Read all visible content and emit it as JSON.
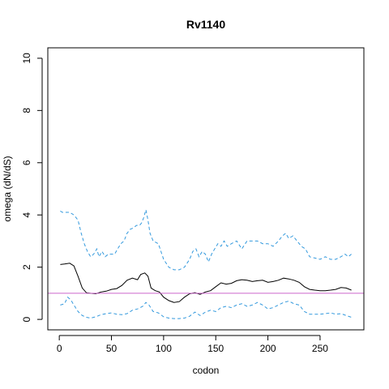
{
  "chart_data": {
    "type": "line",
    "title": "Rv1140",
    "xlabel": "codon",
    "ylabel": "omega (dN/dS)",
    "xlim": [
      -11,
      292
    ],
    "ylim": [
      -0.4,
      10.4
    ],
    "x_ticks": [
      0,
      50,
      100,
      150,
      200,
      250
    ],
    "y_ticks": [
      0,
      2,
      4,
      6,
      8,
      10
    ],
    "grid": false,
    "legend": "none",
    "reference_line": {
      "y": 1,
      "color": "#cc66cc"
    },
    "series": [
      {
        "style": "solid",
        "color": "#000000",
        "x": [
          1,
          5,
          10,
          14,
          18,
          22,
          26,
          30,
          35,
          40,
          45,
          50,
          55,
          60,
          65,
          70,
          75,
          78,
          82,
          85,
          88,
          92,
          96,
          100,
          105,
          110,
          115,
          120,
          125,
          130,
          135,
          140,
          145,
          150,
          155,
          160,
          165,
          170,
          175,
          180,
          185,
          190,
          195,
          200,
          205,
          210,
          215,
          220,
          225,
          230,
          235,
          240,
          245,
          250,
          255,
          260,
          265,
          270,
          275,
          280
        ],
        "y": [
          2.1,
          2.12,
          2.15,
          2.05,
          1.65,
          1.2,
          1.02,
          1.0,
          0.98,
          1.05,
          1.08,
          1.15,
          1.18,
          1.3,
          1.5,
          1.58,
          1.52,
          1.72,
          1.78,
          1.65,
          1.2,
          1.1,
          1.05,
          0.85,
          0.72,
          0.65,
          0.68,
          0.85,
          0.98,
          1.02,
          0.96,
          1.05,
          1.1,
          1.25,
          1.4,
          1.35,
          1.38,
          1.48,
          1.52,
          1.5,
          1.45,
          1.48,
          1.5,
          1.42,
          1.45,
          1.5,
          1.58,
          1.55,
          1.5,
          1.42,
          1.25,
          1.15,
          1.12,
          1.1,
          1.1,
          1.12,
          1.15,
          1.22,
          1.2,
          1.12
        ]
      },
      {
        "style": "dashed",
        "color": "#3399dd",
        "x": [
          1,
          3,
          6,
          10,
          14,
          18,
          21,
          24,
          27,
          30,
          33,
          36,
          38,
          41,
          44,
          47,
          50,
          53,
          56,
          59,
          62,
          65,
          68,
          71,
          74,
          77,
          79,
          81,
          83,
          85,
          87,
          90,
          95,
          100,
          105,
          110,
          115,
          120,
          125,
          128,
          131,
          134,
          137,
          140,
          143,
          146,
          149,
          152,
          155,
          158,
          161,
          165,
          170,
          175,
          180,
          185,
          190,
          195,
          200,
          205,
          210,
          214,
          217,
          220,
          224,
          228,
          232,
          236,
          240,
          245,
          250,
          255,
          260,
          265,
          270,
          274,
          277,
          280
        ],
        "y": [
          4.15,
          4.1,
          4.1,
          4.1,
          4.0,
          3.8,
          3.3,
          2.9,
          2.6,
          2.4,
          2.5,
          2.7,
          2.4,
          2.6,
          2.4,
          2.5,
          2.5,
          2.5,
          2.7,
          2.9,
          3.0,
          3.3,
          3.45,
          3.5,
          3.6,
          3.6,
          3.7,
          3.9,
          4.2,
          3.8,
          3.3,
          3.0,
          2.9,
          2.3,
          2.0,
          1.9,
          1.9,
          2.0,
          2.3,
          2.6,
          2.7,
          2.4,
          2.6,
          2.5,
          2.2,
          2.5,
          2.7,
          2.9,
          2.8,
          3.0,
          2.8,
          2.9,
          3.0,
          2.7,
          3.0,
          3.0,
          3.0,
          2.9,
          2.9,
          2.8,
          3.0,
          3.2,
          3.3,
          3.1,
          3.2,
          3.0,
          2.8,
          2.7,
          2.4,
          2.35,
          2.3,
          2.4,
          2.3,
          2.3,
          2.4,
          2.5,
          2.4,
          2.5
        ]
      },
      {
        "style": "dashed",
        "color": "#3399dd",
        "x": [
          1,
          5,
          8,
          11,
          14,
          18,
          22,
          26,
          30,
          35,
          40,
          45,
          50,
          55,
          60,
          65,
          70,
          75,
          80,
          83,
          86,
          90,
          95,
          100,
          105,
          110,
          115,
          120,
          125,
          130,
          135,
          140,
          145,
          150,
          155,
          160,
          165,
          170,
          175,
          180,
          185,
          190,
          195,
          200,
          205,
          210,
          215,
          220,
          225,
          230,
          235,
          240,
          245,
          250,
          255,
          260,
          265,
          270,
          275,
          280
        ],
        "y": [
          0.55,
          0.6,
          0.85,
          0.75,
          0.55,
          0.3,
          0.15,
          0.08,
          0.05,
          0.1,
          0.18,
          0.22,
          0.25,
          0.2,
          0.18,
          0.22,
          0.35,
          0.4,
          0.5,
          0.65,
          0.55,
          0.3,
          0.25,
          0.1,
          0.05,
          0.03,
          0.03,
          0.05,
          0.12,
          0.28,
          0.15,
          0.28,
          0.35,
          0.3,
          0.45,
          0.5,
          0.45,
          0.55,
          0.6,
          0.5,
          0.55,
          0.65,
          0.55,
          0.4,
          0.45,
          0.55,
          0.65,
          0.7,
          0.6,
          0.55,
          0.3,
          0.2,
          0.2,
          0.2,
          0.22,
          0.25,
          0.2,
          0.22,
          0.15,
          0.08
        ]
      }
    ]
  }
}
